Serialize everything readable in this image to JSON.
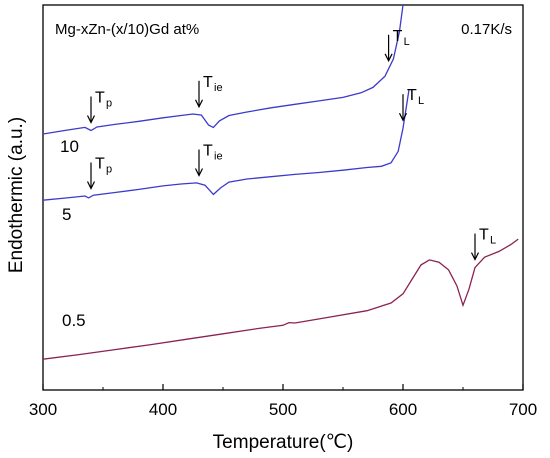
{
  "chart_data": {
    "type": "line",
    "title": "Mg-xZn-(x/10)Gd at%",
    "rate_label": "0.17K/s",
    "xlabel": "Temperature(℃)",
    "ylabel": "Endothermic (a.u.)",
    "xlim": [
      300,
      700
    ],
    "x_ticks": [
      300,
      400,
      500,
      600,
      700
    ],
    "grid": false,
    "y_ticks_shown": false,
    "series": [
      {
        "name": "10",
        "color": "#3b3bcc",
        "points": [
          [
            300,
            0.665
          ],
          [
            320,
            0.675
          ],
          [
            335,
            0.682
          ],
          [
            340,
            0.674
          ],
          [
            345,
            0.683
          ],
          [
            360,
            0.69
          ],
          [
            380,
            0.698
          ],
          [
            400,
            0.707
          ],
          [
            415,
            0.713
          ],
          [
            425,
            0.717
          ],
          [
            432,
            0.714
          ],
          [
            438,
            0.688
          ],
          [
            442,
            0.682
          ],
          [
            447,
            0.699
          ],
          [
            455,
            0.713
          ],
          [
            470,
            0.722
          ],
          [
            490,
            0.733
          ],
          [
            510,
            0.742
          ],
          [
            530,
            0.751
          ],
          [
            550,
            0.76
          ],
          [
            565,
            0.772
          ],
          [
            575,
            0.786
          ],
          [
            585,
            0.815
          ],
          [
            592,
            0.86
          ],
          [
            597,
            0.93
          ],
          [
            600,
            1.0
          ]
        ]
      },
      {
        "name": "5",
        "color": "#3b3bcc",
        "points": [
          [
            300,
            0.493
          ],
          [
            320,
            0.499
          ],
          [
            335,
            0.504
          ],
          [
            338,
            0.499
          ],
          [
            342,
            0.506
          ],
          [
            360,
            0.513
          ],
          [
            380,
            0.521
          ],
          [
            400,
            0.53
          ],
          [
            415,
            0.535
          ],
          [
            428,
            0.538
          ],
          [
            435,
            0.532
          ],
          [
            442,
            0.508
          ],
          [
            448,
            0.525
          ],
          [
            455,
            0.54
          ],
          [
            470,
            0.548
          ],
          [
            490,
            0.554
          ],
          [
            510,
            0.56
          ],
          [
            530,
            0.565
          ],
          [
            550,
            0.571
          ],
          [
            570,
            0.578
          ],
          [
            582,
            0.581
          ],
          [
            590,
            0.59
          ],
          [
            596,
            0.62
          ],
          [
            600,
            0.68
          ],
          [
            603,
            0.74
          ],
          [
            605,
            0.78
          ]
        ]
      },
      {
        "name": "0.5",
        "color": "#8b2252",
        "points": [
          [
            300,
            0.08
          ],
          [
            330,
            0.092
          ],
          [
            360,
            0.105
          ],
          [
            390,
            0.118
          ],
          [
            420,
            0.132
          ],
          [
            450,
            0.146
          ],
          [
            480,
            0.16
          ],
          [
            500,
            0.168
          ],
          [
            505,
            0.175
          ],
          [
            510,
            0.174
          ],
          [
            540,
            0.19
          ],
          [
            570,
            0.206
          ],
          [
            590,
            0.226
          ],
          [
            600,
            0.25
          ],
          [
            608,
            0.29
          ],
          [
            615,
            0.325
          ],
          [
            622,
            0.338
          ],
          [
            630,
            0.332
          ],
          [
            638,
            0.312
          ],
          [
            645,
            0.27
          ],
          [
            650,
            0.22
          ],
          [
            655,
            0.262
          ],
          [
            660,
            0.318
          ],
          [
            668,
            0.345
          ],
          [
            680,
            0.36
          ],
          [
            690,
            0.378
          ],
          [
            696,
            0.392
          ]
        ]
      }
    ],
    "annotations": [
      {
        "main": "T",
        "sub": "p",
        "series": "10",
        "x": 340
      },
      {
        "main": "T",
        "sub": "ie",
        "series": "10",
        "x": 430
      },
      {
        "main": "T",
        "sub": "L",
        "series": "10",
        "x": 588
      },
      {
        "main": "T",
        "sub": "p",
        "series": "5",
        "x": 340
      },
      {
        "main": "T",
        "sub": "ie",
        "series": "5",
        "x": 430
      },
      {
        "main": "T",
        "sub": "L",
        "series": "5",
        "x": 600
      },
      {
        "main": "T",
        "sub": "L",
        "series": "0.5",
        "x": 660
      }
    ]
  }
}
